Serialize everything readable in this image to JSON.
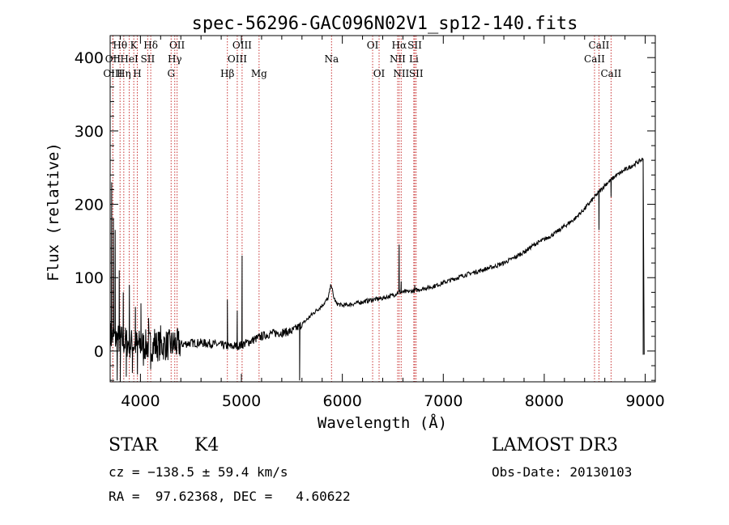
{
  "chart_data": {
    "type": "line",
    "title": "spec-56296-GAC096N02V1_sp12-140.fits",
    "xlabel": "Wavelength (Å)",
    "ylabel": "Flux (relative)",
    "xlim": [
      3700,
      9100
    ],
    "ylim": [
      -42,
      430
    ],
    "xticks": [
      4000,
      5000,
      6000,
      7000,
      8000,
      9000
    ],
    "yticks": [
      0,
      100,
      200,
      300,
      400
    ],
    "series": [
      {
        "name": "flux",
        "color": "#000000",
        "continuum": [
          [
            3700,
            20
          ],
          [
            3800,
            15
          ],
          [
            3900,
            10
          ],
          [
            4000,
            8
          ],
          [
            4100,
            7
          ],
          [
            4200,
            8
          ],
          [
            4300,
            8
          ],
          [
            4400,
            9
          ],
          [
            4500,
            11
          ],
          [
            4600,
            11
          ],
          [
            4700,
            10
          ],
          [
            4800,
            8
          ],
          [
            4900,
            6
          ],
          [
            5000,
            8
          ],
          [
            5100,
            14
          ],
          [
            5200,
            20
          ],
          [
            5300,
            24
          ],
          [
            5400,
            25
          ],
          [
            5500,
            27
          ],
          [
            5600,
            36
          ],
          [
            5700,
            50
          ],
          [
            5800,
            62
          ],
          [
            5860,
            72
          ],
          [
            5890,
            92
          ],
          [
            5910,
            75
          ],
          [
            5940,
            65
          ],
          [
            6000,
            62
          ],
          [
            6100,
            64
          ],
          [
            6200,
            67
          ],
          [
            6300,
            70
          ],
          [
            6400,
            72
          ],
          [
            6500,
            76
          ],
          [
            6560,
            80
          ],
          [
            6600,
            80
          ],
          [
            6700,
            82
          ],
          [
            6800,
            85
          ],
          [
            6900,
            88
          ],
          [
            7000,
            93
          ],
          [
            7100,
            98
          ],
          [
            7200,
            103
          ],
          [
            7300,
            107
          ],
          [
            7400,
            111
          ],
          [
            7500,
            115
          ],
          [
            7600,
            120
          ],
          [
            7700,
            127
          ],
          [
            7800,
            135
          ],
          [
            7900,
            145
          ],
          [
            8000,
            152
          ],
          [
            8100,
            160
          ],
          [
            8200,
            170
          ],
          [
            8300,
            180
          ],
          [
            8400,
            194
          ],
          [
            8500,
            210
          ],
          [
            8600,
            226
          ],
          [
            8700,
            238
          ],
          [
            8800,
            247
          ],
          [
            8900,
            255
          ],
          [
            8980,
            262
          ]
        ],
        "spikes": [
          [
            3715,
            230
          ],
          [
            3732,
            180
          ],
          [
            3750,
            165
          ],
          [
            3770,
            -40
          ],
          [
            3790,
            110
          ],
          [
            3800,
            -38
          ],
          [
            3830,
            80
          ],
          [
            3860,
            -35
          ],
          [
            3890,
            90
          ],
          [
            3920,
            -30
          ],
          [
            3950,
            60
          ],
          [
            3970,
            -32
          ],
          [
            4005,
            65
          ],
          [
            4030,
            -20
          ],
          [
            4080,
            45
          ],
          [
            4101,
            -25
          ],
          [
            4140,
            30
          ],
          [
            4200,
            35
          ],
          [
            4250,
            -10
          ],
          [
            4340,
            25
          ],
          [
            4380,
            5
          ],
          [
            4861,
            70
          ],
          [
            4959,
            55
          ],
          [
            5007,
            130
          ],
          [
            5577,
            -40
          ],
          [
            6563,
            145
          ],
          [
            6583,
            95
          ],
          [
            6717,
            90
          ],
          [
            8542,
            165
          ],
          [
            8662,
            210
          ],
          [
            8990,
            -5
          ]
        ]
      }
    ],
    "emission_lines": [
      {
        "label": "Hθ",
        "wavelength": 3798,
        "row": 1
      },
      {
        "label": "K",
        "wavelength": 3934,
        "row": 1
      },
      {
        "label": "Hδ",
        "wavelength": 4102,
        "row": 1
      },
      {
        "label": "OII",
        "wavelength": 4363,
        "row": 1
      },
      {
        "label": "OIII",
        "wavelength": 5007,
        "row": 1
      },
      {
        "label": "OI",
        "wavelength": 6300,
        "row": 1
      },
      {
        "label": "Hα",
        "wavelength": 6563,
        "row": 1
      },
      {
        "label": "SII",
        "wavelength": 6717,
        "row": 1
      },
      {
        "label": "CaII",
        "wavelength": 8542,
        "row": 1
      },
      {
        "label": "OII",
        "wavelength": 3727,
        "row": 2
      },
      {
        "label": "HeI",
        "wavelength": 3889,
        "row": 2
      },
      {
        "label": "SII",
        "wavelength": 4072,
        "row": 2
      },
      {
        "label": "Hγ",
        "wavelength": 4340,
        "row": 2
      },
      {
        "label": "OIII",
        "wavelength": 4959,
        "row": 2
      },
      {
        "label": "Na",
        "wavelength": 5893,
        "row": 2
      },
      {
        "label": "NII",
        "wavelength": 6548,
        "row": 2
      },
      {
        "label": "Li",
        "wavelength": 6708,
        "row": 2
      },
      {
        "label": "CaII",
        "wavelength": 8498,
        "row": 2
      },
      {
        "label": "OIII",
        "wavelength": 3727,
        "row": 3
      },
      {
        "label": "Hη",
        "wavelength": 3835,
        "row": 3
      },
      {
        "label": "H",
        "wavelength": 3969,
        "row": 3
      },
      {
        "label": "G",
        "wavelength": 4304,
        "row": 3
      },
      {
        "label": "Hβ",
        "wavelength": 4861,
        "row": 3
      },
      {
        "label": "Mg",
        "wavelength": 5175,
        "row": 3
      },
      {
        "label": "OI",
        "wavelength": 6364,
        "row": 3
      },
      {
        "label": "NII",
        "wavelength": 6583,
        "row": 3
      },
      {
        "label": "SII",
        "wavelength": 6731,
        "row": 3
      },
      {
        "label": "CaII",
        "wavelength": 8662,
        "row": 3
      }
    ],
    "line_color": "#c83232"
  },
  "info": {
    "class_label": "STAR",
    "subclass": "K4",
    "survey": "LAMOST DR3",
    "cz": "cz = −138.5 ± 59.4 km/s",
    "obs_date": "Obs-Date: 20130103",
    "coords": "RA =  97.62368, DEC =   4.60622"
  }
}
